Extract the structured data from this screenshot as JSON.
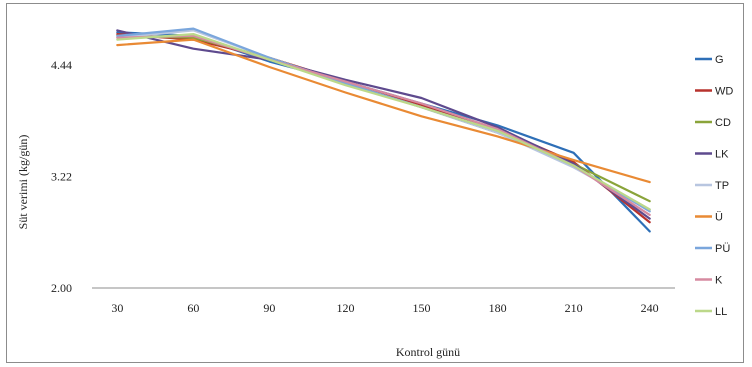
{
  "chart_data": {
    "type": "line",
    "xlabel": "Kontrol günü",
    "ylabel": "Süt verimi (kg/gün)",
    "x": [
      30,
      60,
      90,
      120,
      150,
      180,
      210,
      240
    ],
    "x_tick_labels": [
      "30",
      "60",
      "90",
      "120",
      "150",
      "180",
      "210",
      "240"
    ],
    "xlim": [
      20,
      250
    ],
    "ylim": [
      2.0,
      5.0
    ],
    "y_ticks": [
      2.0,
      3.22,
      4.44
    ],
    "y_tick_labels": [
      "2.00",
      "3.22",
      "4.44"
    ],
    "grid": false,
    "legend_position": "right",
    "series": [
      {
        "name": "G",
        "color": "#2e6fb7",
        "values": [
          4.8,
          4.76,
          4.48,
          4.26,
          4.02,
          3.78,
          3.48,
          2.62
        ]
      },
      {
        "name": "WD",
        "color": "#b7322d",
        "values": [
          4.78,
          4.72,
          4.52,
          4.26,
          4.0,
          3.74,
          3.38,
          2.72
        ]
      },
      {
        "name": "CD",
        "color": "#8aa43a",
        "values": [
          4.76,
          4.74,
          4.52,
          4.24,
          3.98,
          3.7,
          3.36,
          2.95
        ]
      },
      {
        "name": "LK",
        "color": "#5e4a8e",
        "values": [
          4.82,
          4.62,
          4.5,
          4.28,
          4.08,
          3.76,
          3.36,
          2.76
        ]
      },
      {
        "name": "TP",
        "color": "#b8c6e0",
        "values": [
          4.74,
          4.82,
          4.52,
          4.24,
          3.98,
          3.7,
          3.32,
          2.86
        ]
      },
      {
        "name": "Ü",
        "color": "#e98a34",
        "values": [
          4.66,
          4.72,
          4.42,
          4.14,
          3.88,
          3.66,
          3.4,
          3.16
        ]
      },
      {
        "name": "PÜ",
        "color": "#7aa6dc",
        "values": [
          4.76,
          4.84,
          4.52,
          4.24,
          3.98,
          3.72,
          3.34,
          2.84
        ]
      },
      {
        "name": "K",
        "color": "#d68aa0",
        "values": [
          4.74,
          4.76,
          4.5,
          4.26,
          4.02,
          3.74,
          3.34,
          2.8
        ]
      },
      {
        "name": "LL",
        "color": "#bcd88a",
        "values": [
          4.72,
          4.78,
          4.5,
          4.22,
          3.98,
          3.72,
          3.34,
          2.86
        ]
      }
    ]
  }
}
